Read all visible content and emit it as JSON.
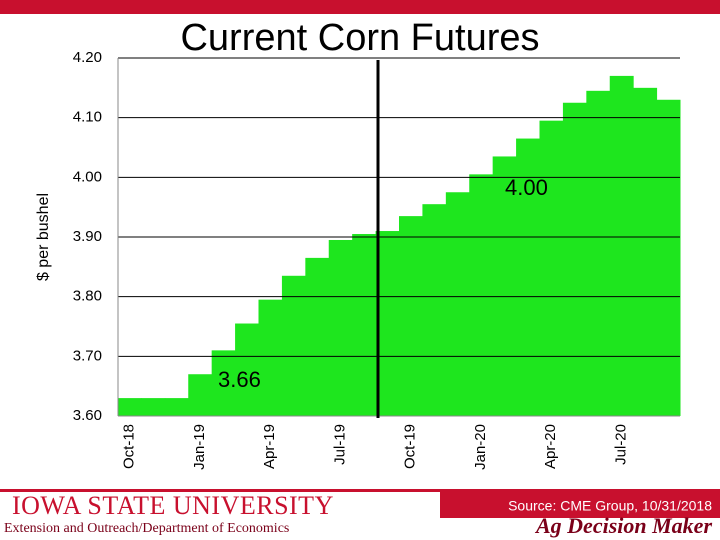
{
  "chart_data": {
    "type": "step-bar",
    "title": "Current Corn Futures",
    "y_label": "$ per bushel",
    "categories": [
      "Oct-18",
      null,
      null,
      "Jan-19",
      null,
      null,
      "Apr-19",
      null,
      null,
      "Jul-19",
      null,
      null,
      "Oct-19",
      null,
      null,
      "Jan-20",
      null,
      null,
      "Apr-20",
      null,
      null,
      "Jul-20",
      null,
      null
    ],
    "values": [
      3.63,
      3.63,
      3.63,
      3.67,
      3.71,
      3.755,
      3.795,
      3.835,
      3.865,
      3.895,
      3.905,
      3.91,
      3.935,
      3.955,
      3.975,
      4.005,
      4.035,
      4.065,
      4.095,
      4.125,
      4.145,
      4.17,
      4.15,
      4.13
    ],
    "color": "#1ee61e",
    "ylim": [
      3.6,
      4.2
    ],
    "yticks": [
      {
        "value": 3.6,
        "label": "3.60"
      },
      {
        "value": 3.7,
        "label": "3.70"
      },
      {
        "value": 3.8,
        "label": "3.80"
      },
      {
        "value": 3.9,
        "label": "3.90"
      },
      {
        "value": 4.0,
        "label": "4.00"
      },
      {
        "value": 4.1,
        "label": "4.10"
      },
      {
        "value": 4.2,
        "label": "4.20"
      }
    ],
    "grid": true,
    "annotations": [
      "3.66",
      "4.00"
    ]
  },
  "footer": {
    "university": "Iowa State University",
    "department": "Extension and Outreach/Department of Economics",
    "source": "Source: CME Group, 10/31/2018",
    "brand": "Ag Decision Maker"
  }
}
